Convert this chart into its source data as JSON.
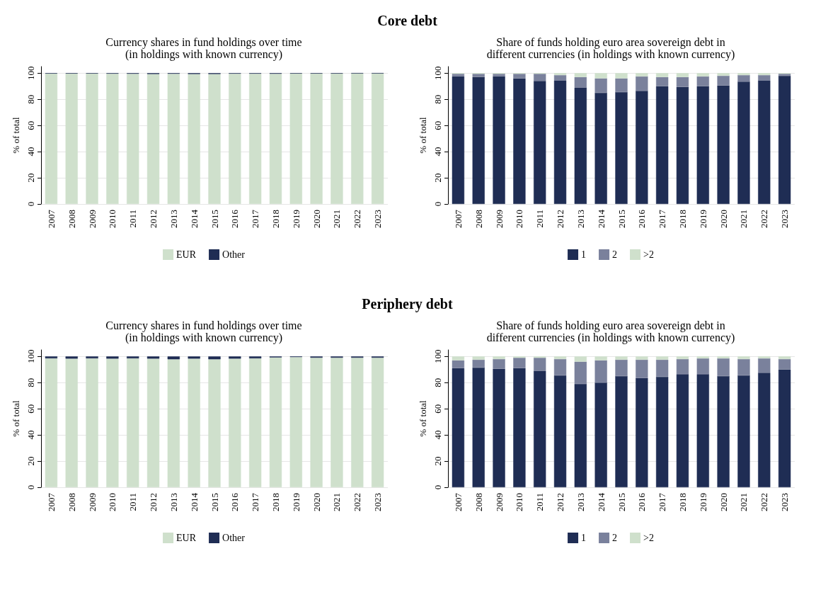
{
  "chart_data": [
    {
      "type": "bar",
      "title": "Currency shares in fund holdings over time\n(in holdings with known currency)",
      "annotations": [
        "Core debt"
      ],
      "ylabel": "% of total",
      "categories": [
        "2007",
        "2008",
        "2009",
        "2010",
        "2011",
        "2012",
        "2013",
        "2014",
        "2015",
        "2016",
        "2017",
        "2018",
        "2019",
        "2020",
        "2021",
        "2022",
        "2023"
      ],
      "stacked": true,
      "ylim": [
        0,
        105
      ],
      "yticks": [
        0,
        20,
        40,
        60,
        80,
        100
      ],
      "grid": "y",
      "legend": "bottom",
      "series": [
        {
          "name": "EUR",
          "color": "#cfe0cc",
          "values": [
            99.7,
            99.7,
            99.7,
            99.6,
            99.5,
            99.3,
            99.5,
            99.3,
            99.3,
            99.6,
            99.6,
            99.5,
            99.7,
            99.7,
            99.7,
            99.8,
            99.8
          ]
        },
        {
          "name": "Other",
          "color": "#1f2d54",
          "values": [
            0.3,
            0.3,
            0.3,
            0.4,
            0.5,
            0.7,
            0.5,
            0.7,
            0.7,
            0.4,
            0.4,
            0.5,
            0.3,
            0.3,
            0.3,
            0.2,
            0.2
          ]
        }
      ]
    },
    {
      "type": "bar",
      "title": "Share of funds holding euro area sovereign debt in\ndifferent currencies (in holdings with known currency)",
      "ylabel": "% of total",
      "categories": [
        "2007",
        "2008",
        "2009",
        "2010",
        "2011",
        "2012",
        "2013",
        "2014",
        "2015",
        "2016",
        "2017",
        "2018",
        "2019",
        "2020",
        "2021",
        "2022",
        "2023"
      ],
      "stacked": true,
      "ylim": [
        0,
        105
      ],
      "yticks": [
        0,
        20,
        40,
        60,
        80,
        100
      ],
      "grid": "y",
      "legend": "bottom",
      "series": [
        {
          "name": "1",
          "color": "#1f2d54",
          "values": [
            97.5,
            97,
            97.5,
            96,
            94,
            94.5,
            89,
            85,
            85.5,
            86.5,
            90,
            89.5,
            90,
            90.5,
            93.5,
            94.5,
            98
          ]
        },
        {
          "name": "2",
          "color": "#7a819c",
          "values": [
            2,
            2.5,
            2,
            3.5,
            5.5,
            4,
            8,
            11,
            10.5,
            11,
            7,
            7.5,
            7.5,
            7.5,
            5,
            4,
            1.5
          ]
        },
        {
          "name": ">2",
          "color": "#cfe0cc",
          "values": [
            0.5,
            0.5,
            0.5,
            0.5,
            0.5,
            1.5,
            3,
            4,
            4,
            2.5,
            3,
            3,
            2.5,
            2,
            1.5,
            1.5,
            0.5
          ]
        }
      ]
    },
    {
      "type": "bar",
      "title": "Currency shares in fund holdings over time\n(in holdings with known currency)",
      "annotations": [
        "Periphery debt"
      ],
      "ylabel": "% of total",
      "categories": [
        "2007",
        "2008",
        "2009",
        "2010",
        "2011",
        "2012",
        "2013",
        "2014",
        "2015",
        "2016",
        "2017",
        "2018",
        "2019",
        "2020",
        "2021",
        "2022",
        "2023"
      ],
      "stacked": true,
      "ylim": [
        0,
        105
      ],
      "yticks": [
        0,
        20,
        40,
        60,
        80,
        100
      ],
      "grid": "y",
      "legend": "bottom",
      "series": [
        {
          "name": "EUR",
          "color": "#cfe0cc",
          "values": [
            98.5,
            98.3,
            98.5,
            98.3,
            98.5,
            98.3,
            97.8,
            98.3,
            97.8,
            98.3,
            98.5,
            99.2,
            99.5,
            99,
            99,
            99,
            99
          ]
        },
        {
          "name": "Other",
          "color": "#1f2d54",
          "values": [
            1.5,
            1.7,
            1.5,
            1.7,
            1.5,
            1.7,
            2.2,
            1.7,
            2.2,
            1.7,
            1.5,
            0.8,
            0.5,
            1,
            1,
            1,
            1
          ]
        }
      ]
    },
    {
      "type": "bar",
      "title": "Share of funds holding euro area sovereign debt in\ndifferent currencies (in holdings with known currency)",
      "ylabel": "% of total",
      "categories": [
        "2007",
        "2008",
        "2009",
        "2010",
        "2011",
        "2012",
        "2013",
        "2014",
        "2015",
        "2016",
        "2017",
        "2018",
        "2019",
        "2020",
        "2021",
        "2022",
        "2023"
      ],
      "stacked": true,
      "ylim": [
        0,
        105
      ],
      "yticks": [
        0,
        20,
        40,
        60,
        80,
        100
      ],
      "grid": "y",
      "legend": "bottom",
      "series": [
        {
          "name": "1",
          "color": "#1f2d54",
          "values": [
            91,
            91.5,
            90.5,
            91,
            89,
            85.5,
            79,
            80,
            85,
            83.5,
            84.5,
            86.5,
            86.5,
            85,
            85.5,
            87.5,
            90
          ]
        },
        {
          "name": "2",
          "color": "#7a819c",
          "values": [
            6,
            6,
            7.5,
            8,
            10,
            12.5,
            17,
            17,
            12.5,
            14,
            13,
            11.5,
            12,
            13.5,
            12.5,
            11,
            8
          ]
        },
        {
          "name": ">2",
          "color": "#cfe0cc",
          "values": [
            3,
            2.5,
            2,
            1,
            1,
            2,
            4,
            3,
            2.5,
            2.5,
            2.5,
            2,
            1.5,
            1.5,
            2,
            1.5,
            2
          ]
        }
      ]
    }
  ]
}
